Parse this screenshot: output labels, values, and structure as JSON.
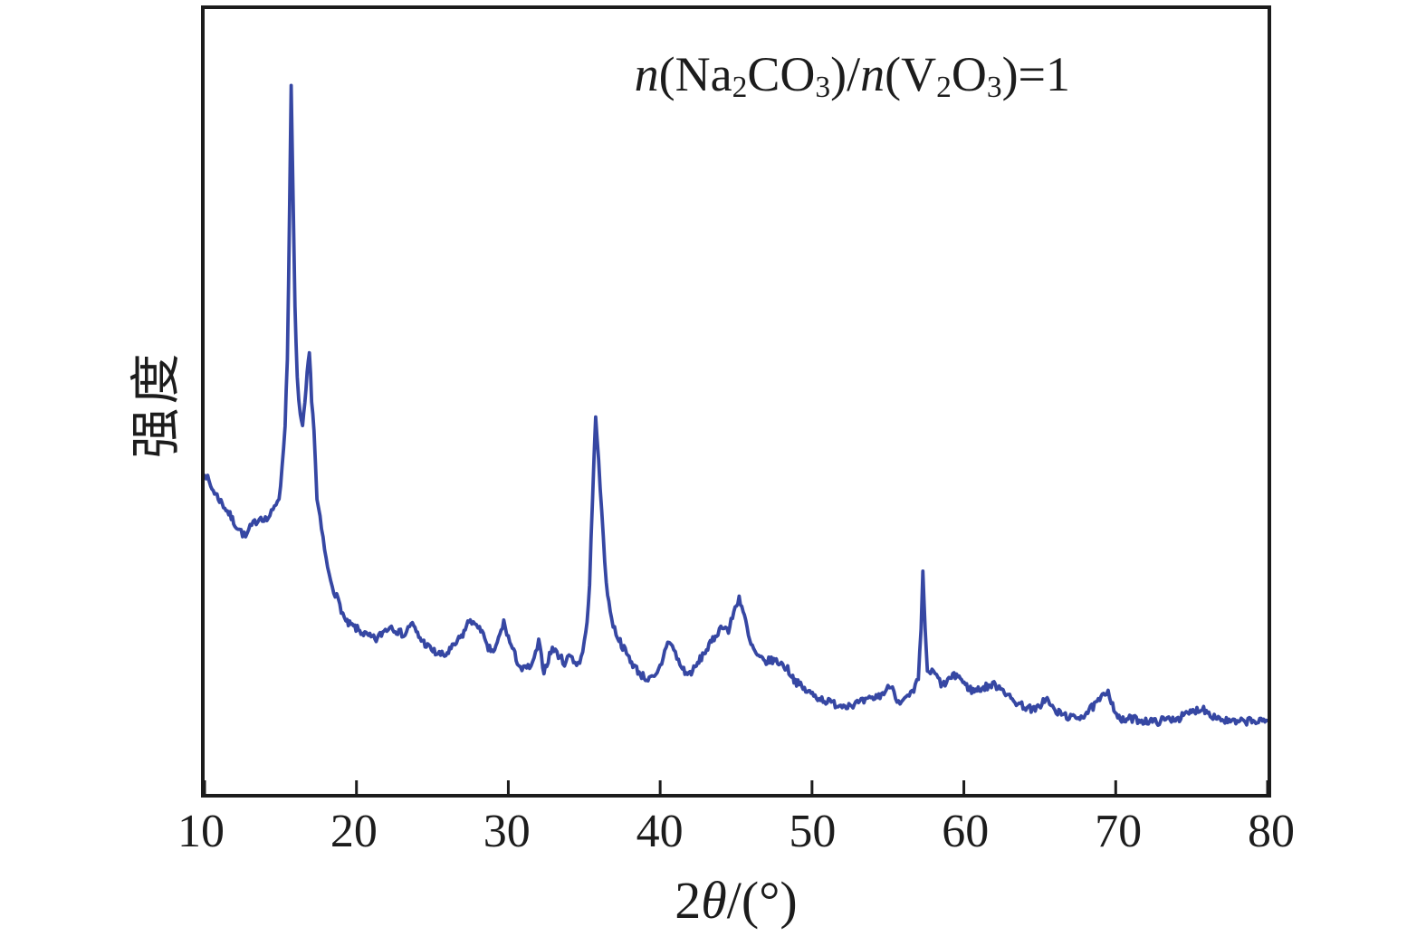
{
  "colors": {
    "background": "#ffffff",
    "frame": "#1c1c1c",
    "text": "#1c1c1c",
    "line": "#3647a3"
  },
  "chart_data": {
    "type": "line",
    "title": "",
    "xlabel_text": "2θ/(°)",
    "xlabel_rich": [
      {
        "t": "2"
      },
      {
        "t": "θ",
        "s": "i"
      },
      {
        "t": "/(°)"
      }
    ],
    "ylabel": "强度",
    "annotation_text": "n(Na2CO3)/n(V2O3)=1",
    "annotation_rich": [
      {
        "t": "n",
        "s": "i"
      },
      {
        "t": "(Na"
      },
      {
        "t": "2",
        "s": "sub"
      },
      {
        "t": "CO"
      },
      {
        "t": "3",
        "s": "sub"
      },
      {
        "t": ")/"
      },
      {
        "t": "n",
        "s": "i"
      },
      {
        "t": "(V"
      },
      {
        "t": "2",
        "s": "sub"
      },
      {
        "t": "O"
      },
      {
        "t": "3",
        "s": "sub"
      },
      {
        "t": ")=1"
      }
    ],
    "xlim": [
      10,
      80
    ],
    "ylim": [
      0,
      111.3
    ],
    "x_ticks": [
      10,
      20,
      30,
      40,
      50,
      60,
      70,
      80
    ],
    "y_ticks": [],
    "grid": false,
    "legend": "none",
    "tick_direction": "in",
    "noise_amplitude": 0.55,
    "noise_step": 0.09,
    "noise_seed": 7,
    "series": [
      {
        "name": "XRD pattern n(Na2CO3)/n(V2O3)=1",
        "points": [
          [
            10.0,
            45.7
          ],
          [
            10.4,
            43.6
          ],
          [
            10.9,
            42.0
          ],
          [
            11.5,
            40.1
          ],
          [
            12.0,
            38.3
          ],
          [
            12.4,
            37.2
          ],
          [
            12.7,
            36.4
          ],
          [
            13.0,
            37.7
          ],
          [
            13.3,
            38.5
          ],
          [
            13.7,
            39.3
          ],
          [
            14.1,
            38.9
          ],
          [
            14.5,
            40.1
          ],
          [
            14.9,
            42.2
          ],
          [
            15.1,
            45.9
          ],
          [
            15.3,
            52.5
          ],
          [
            15.45,
            61.8
          ],
          [
            15.6,
            83.5
          ],
          [
            15.7,
            100.0
          ],
          [
            15.82,
            85.4
          ],
          [
            15.95,
            68.8
          ],
          [
            16.1,
            58.7
          ],
          [
            16.3,
            53.8
          ],
          [
            16.45,
            51.8
          ],
          [
            16.6,
            55.1
          ],
          [
            16.75,
            59.3
          ],
          [
            16.9,
            62.5
          ],
          [
            17.05,
            56.1
          ],
          [
            17.2,
            51.7
          ],
          [
            17.4,
            41.7
          ],
          [
            17.8,
            36.1
          ],
          [
            18.1,
            31.9
          ],
          [
            18.5,
            29.0
          ],
          [
            18.9,
            26.8
          ],
          [
            19.3,
            24.3
          ],
          [
            19.8,
            23.7
          ],
          [
            20.3,
            23.0
          ],
          [
            20.8,
            22.3
          ],
          [
            21.3,
            21.9
          ],
          [
            21.9,
            23.3
          ],
          [
            22.3,
            23.8
          ],
          [
            22.8,
            22.9
          ],
          [
            23.2,
            22.6
          ],
          [
            23.6,
            24.3
          ],
          [
            24.1,
            22.3
          ],
          [
            24.6,
            21.1
          ],
          [
            25.2,
            20.0
          ],
          [
            25.8,
            19.6
          ],
          [
            26.4,
            20.9
          ],
          [
            27.0,
            22.6
          ],
          [
            27.5,
            24.9
          ],
          [
            27.9,
            23.5
          ],
          [
            28.1,
            24.0
          ],
          [
            28.6,
            20.7
          ],
          [
            29.1,
            20.2
          ],
          [
            29.7,
            24.3
          ],
          [
            30.1,
            21.5
          ],
          [
            30.6,
            18.8
          ],
          [
            30.9,
            17.6
          ],
          [
            31.3,
            17.9
          ],
          [
            31.6,
            18.3
          ],
          [
            32.0,
            21.5
          ],
          [
            32.35,
            17.4
          ],
          [
            32.9,
            20.7
          ],
          [
            33.3,
            19.7
          ],
          [
            33.7,
            18.6
          ],
          [
            34.1,
            19.8
          ],
          [
            34.5,
            18.3
          ],
          [
            34.8,
            19.2
          ],
          [
            35.1,
            22.6
          ],
          [
            35.35,
            29.4
          ],
          [
            35.55,
            42.1
          ],
          [
            35.75,
            53.3
          ],
          [
            35.95,
            47.8
          ],
          [
            36.15,
            39.6
          ],
          [
            36.45,
            30.0
          ],
          [
            36.8,
            24.6
          ],
          [
            37.2,
            22.3
          ],
          [
            37.7,
            20.2
          ],
          [
            38.2,
            18.4
          ],
          [
            38.7,
            17.0
          ],
          [
            39.2,
            16.2
          ],
          [
            39.7,
            16.5
          ],
          [
            40.1,
            18.6
          ],
          [
            40.5,
            21.8
          ],
          [
            40.9,
            20.5
          ],
          [
            41.3,
            18.3
          ],
          [
            41.8,
            16.9
          ],
          [
            42.3,
            17.8
          ],
          [
            42.8,
            19.7
          ],
          [
            43.3,
            21.2
          ],
          [
            43.8,
            23.0
          ],
          [
            44.2,
            24.0
          ],
          [
            44.5,
            23.0
          ],
          [
            44.85,
            25.8
          ],
          [
            45.2,
            27.9
          ],
          [
            45.55,
            25.2
          ],
          [
            45.9,
            21.5
          ],
          [
            46.4,
            19.5
          ],
          [
            46.9,
            18.7
          ],
          [
            47.4,
            19.0
          ],
          [
            47.9,
            18.6
          ],
          [
            48.4,
            17.7
          ],
          [
            48.9,
            16.0
          ],
          [
            49.5,
            14.8
          ],
          [
            50.2,
            13.9
          ],
          [
            51.0,
            13.1
          ],
          [
            51.8,
            12.6
          ],
          [
            52.7,
            12.7
          ],
          [
            53.6,
            13.2
          ],
          [
            54.4,
            13.9
          ],
          [
            54.9,
            14.6
          ],
          [
            55.2,
            15.6
          ],
          [
            55.6,
            13.5
          ],
          [
            55.9,
            12.9
          ],
          [
            56.3,
            13.7
          ],
          [
            56.7,
            14.4
          ],
          [
            57.0,
            16.4
          ],
          [
            57.18,
            23.0
          ],
          [
            57.3,
            31.6
          ],
          [
            57.45,
            23.7
          ],
          [
            57.6,
            16.9
          ],
          [
            57.9,
            17.4
          ],
          [
            58.2,
            16.7
          ],
          [
            58.6,
            15.3
          ],
          [
            59.1,
            16.4
          ],
          [
            59.6,
            16.9
          ],
          [
            60.1,
            15.4
          ],
          [
            60.6,
            14.6
          ],
          [
            61.2,
            15.0
          ],
          [
            61.9,
            15.5
          ],
          [
            62.5,
            15.1
          ],
          [
            63.1,
            13.4
          ],
          [
            63.9,
            12.5
          ],
          [
            64.7,
            11.8
          ],
          [
            65.4,
            13.6
          ],
          [
            66.0,
            11.7
          ],
          [
            66.6,
            11.2
          ],
          [
            67.2,
            10.7
          ],
          [
            67.9,
            11.2
          ],
          [
            68.6,
            12.5
          ],
          [
            69.2,
            13.9
          ],
          [
            69.5,
            14.8
          ],
          [
            69.8,
            12.6
          ],
          [
            70.3,
            10.3
          ],
          [
            71.0,
            10.7
          ],
          [
            71.8,
            10.4
          ],
          [
            72.6,
            10.2
          ],
          [
            73.4,
            10.6
          ],
          [
            74.2,
            10.8
          ],
          [
            75.0,
            11.6
          ],
          [
            75.7,
            12.2
          ],
          [
            76.4,
            11.1
          ],
          [
            77.2,
            10.4
          ],
          [
            78.0,
            10.1
          ],
          [
            78.8,
            10.4
          ],
          [
            79.4,
            10.2
          ],
          [
            80.0,
            10.4
          ]
        ]
      }
    ]
  }
}
